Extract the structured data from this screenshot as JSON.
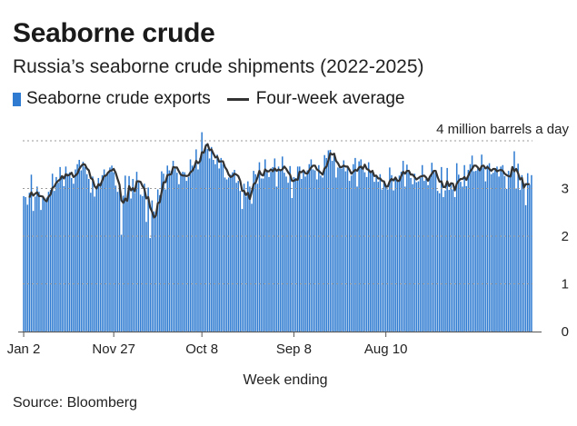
{
  "title": "Seaborne crude",
  "subtitle": "Russia’s seaborne crude shipments (2022-2025)",
  "legend": {
    "bars": "Seaborne crude exports",
    "line": "Four-week average"
  },
  "source": "Source: Bloomberg",
  "colors": {
    "bar": "#2e7bd1",
    "line": "#333333",
    "grid": "#9a9a9a"
  },
  "chart_data": {
    "type": "bar",
    "title": "Seaborne crude",
    "xlabel": "Week ending",
    "ylabel": "",
    "y_unit_label": "4 million barrels a day",
    "ylim": [
      0,
      4
    ],
    "yticks": [
      0,
      1,
      2,
      3
    ],
    "xtick_labels": [
      {
        "label": "Jan 2",
        "index": 0
      },
      {
        "label": "Nov 27",
        "index": 47
      },
      {
        "label": "Oct 8",
        "index": 93
      },
      {
        "label": "Sep 8",
        "index": 141
      },
      {
        "label": "Aug 10",
        "index": 189
      }
    ],
    "grid": true,
    "series": [
      {
        "name": "Seaborne crude exports",
        "kind": "bar",
        "values": [
          2.84,
          2.82,
          2.66,
          2.91,
          3.29,
          2.53,
          2.83,
          3.04,
          2.93,
          2.55,
          2.81,
          2.75,
          2.81,
          2.93,
          2.97,
          3.31,
          2.95,
          3.24,
          3.12,
          3.45,
          3.24,
          3.05,
          3.46,
          3.31,
          3.34,
          3.22,
          3.1,
          3.4,
          3.51,
          3.6,
          3.38,
          3.56,
          3.45,
          3.3,
          3.2,
          2.91,
          3.25,
          2.83,
          3.04,
          3.22,
          3.12,
          3.28,
          3.4,
          3.27,
          3.35,
          3.44,
          3.48,
          3.34,
          3.06,
          2.93,
          2.99,
          2.03,
          2.85,
          3.27,
          2.8,
          3.26,
          2.79,
          3.2,
          2.91,
          3.35,
          3.13,
          2.87,
          2.84,
          3.1,
          2.3,
          3.02,
          1.96,
          2.75,
          2.52,
          2.49,
          2.98,
          2.86,
          3.36,
          3.31,
          2.98,
          3.48,
          3.38,
          3.36,
          3.58,
          3.42,
          3.33,
          3.09,
          3.3,
          3.35,
          3.34,
          3.16,
          3.24,
          3.61,
          3.48,
          3.41,
          3.82,
          3.4,
          3.64,
          4.18,
          3.79,
          3.93,
          3.83,
          3.63,
          3.87,
          3.6,
          3.51,
          3.71,
          3.42,
          3.64,
          3.51,
          3.23,
          3.19,
          3.23,
          3.29,
          3.34,
          3.39,
          3.12,
          3.16,
          2.95,
          2.57,
          3.1,
          2.83,
          3.15,
          3.04,
          2.68,
          3.37,
          3.3,
          3.1,
          3.55,
          3.21,
          3.21,
          3.61,
          3.39,
          3.24,
          3.35,
          3.45,
          3.63,
          3.04,
          3.46,
          3.39,
          3.67,
          3.33,
          3.25,
          3.12,
          3.47,
          2.8,
          3.24,
          3.22,
          3.46,
          3.46,
          3.2,
          3.39,
          3.25,
          3.38,
          3.51,
          3.61,
          3.4,
          3.38,
          3.19,
          3.49,
          3.27,
          3.23,
          3.7,
          3.64,
          3.8,
          3.81,
          3.58,
          3.69,
          3.23,
          3.44,
          3.46,
          3.42,
          3.59,
          3.36,
          3.45,
          3.16,
          3.27,
          3.51,
          3.64,
          3.04,
          3.57,
          3.61,
          3.43,
          3.34,
          3.24,
          3.55,
          3.34,
          3.33,
          3.14,
          3.25,
          3.14,
          3.3,
          2.98,
          3.12,
          3.08,
          2.98,
          3.44,
          3.28,
          2.96,
          3.23,
          3.18,
          3.27,
          3.35,
          3.58,
          3.04,
          3.5,
          3.34,
          3.22,
          3.09,
          3.31,
          3.13,
          3.15,
          3.22,
          3.49,
          3.16,
          3.2,
          3.07,
          3.25,
          3.54,
          3.37,
          3.33,
          2.95,
          2.9,
          3.45,
          2.82,
          2.96,
          3.43,
          2.97,
          3.08,
          2.98,
          2.82,
          3.53,
          3.29,
          3.14,
          3.04,
          3.49,
          3.05,
          3.39,
          3.51,
          3.69,
          3.36,
          3.37,
          3.42,
          3.37,
          3.71,
          3.44,
          3.15,
          3.49,
          3.53,
          3.3,
          3.33,
          3.39,
          3.46,
          3.25,
          3.46,
          3.49,
          3.26,
          2.99,
          3.37,
          3.29,
          3.36,
          3.78,
          3.0,
          3.52,
          2.97,
          3.28,
          3.11,
          2.65,
          3.32,
          3.08,
          3.28
        ],
        "color": "#2e7bd1"
      },
      {
        "name": "Four-week average",
        "kind": "line",
        "values": [
          2.84,
          2.83,
          2.77,
          2.81,
          2.92,
          2.85,
          2.89,
          2.92,
          2.84,
          2.84,
          2.83,
          2.76,
          2.73,
          2.83,
          2.87,
          3.01,
          3.04,
          3.12,
          3.16,
          3.19,
          3.26,
          3.21,
          3.3,
          3.27,
          3.29,
          3.33,
          3.24,
          3.27,
          3.31,
          3.41,
          3.47,
          3.51,
          3.5,
          3.42,
          3.38,
          3.22,
          3.19,
          3.05,
          3.0,
          3.09,
          3.06,
          3.17,
          3.26,
          3.27,
          3.33,
          3.37,
          3.38,
          3.41,
          3.33,
          3.2,
          3.08,
          2.75,
          2.7,
          2.79,
          2.74,
          3.05,
          2.96,
          3.01,
          2.94,
          3.15,
          3.15,
          3.14,
          3.05,
          2.99,
          2.79,
          2.82,
          2.6,
          2.51,
          2.39,
          2.43,
          2.69,
          2.71,
          2.93,
          3.13,
          3.13,
          3.28,
          3.29,
          3.3,
          3.45,
          3.44,
          3.44,
          3.36,
          3.29,
          3.27,
          3.27,
          3.26,
          3.27,
          3.34,
          3.37,
          3.44,
          3.58,
          3.53,
          3.57,
          3.76,
          3.75,
          3.89,
          3.93,
          3.8,
          3.82,
          3.73,
          3.65,
          3.67,
          3.56,
          3.57,
          3.57,
          3.45,
          3.39,
          3.29,
          3.24,
          3.26,
          3.31,
          3.29,
          3.26,
          3.16,
          2.95,
          2.95,
          2.86,
          2.91,
          2.78,
          2.93,
          3.09,
          3.12,
          3.23,
          3.37,
          3.29,
          3.27,
          3.4,
          3.36,
          3.36,
          3.4,
          3.36,
          3.42,
          3.37,
          3.4,
          3.38,
          3.4,
          3.46,
          3.41,
          3.34,
          3.29,
          3.16,
          3.16,
          3.19,
          3.18,
          3.35,
          3.34,
          3.38,
          3.32,
          3.31,
          3.38,
          3.44,
          3.48,
          3.48,
          3.4,
          3.37,
          3.33,
          3.29,
          3.42,
          3.46,
          3.59,
          3.74,
          3.71,
          3.73,
          3.58,
          3.53,
          3.45,
          3.45,
          3.48,
          3.46,
          3.46,
          3.39,
          3.31,
          3.35,
          3.39,
          3.37,
          3.44,
          3.46,
          3.41,
          3.5,
          3.41,
          3.39,
          3.34,
          3.37,
          3.26,
          3.27,
          3.21,
          3.21,
          3.16,
          3.15,
          3.04,
          3.04,
          3.15,
          3.2,
          3.17,
          3.23,
          3.16,
          3.16,
          3.26,
          3.35,
          3.31,
          3.37,
          3.37,
          3.29,
          3.29,
          3.24,
          3.19,
          3.22,
          3.25,
          3.26,
          3.27,
          3.23,
          3.16,
          3.25,
          3.31,
          3.37,
          3.37,
          3.24,
          3.14,
          3.15,
          3.03,
          3.03,
          3.15,
          3.05,
          3.11,
          3.1,
          2.96,
          3.1,
          3.16,
          3.2,
          3.2,
          3.24,
          3.18,
          3.27,
          3.36,
          3.41,
          3.48,
          3.48,
          3.44,
          3.38,
          3.47,
          3.48,
          3.42,
          3.45,
          3.41,
          3.37,
          3.41,
          3.41,
          3.36,
          3.38,
          3.39,
          3.37,
          3.31,
          3.28,
          3.26,
          3.25,
          3.45,
          3.36,
          3.41,
          3.32,
          3.19,
          3.22,
          3.02,
          3.09,
          3.09,
          3.09
        ],
        "color": "#333333"
      }
    ]
  }
}
